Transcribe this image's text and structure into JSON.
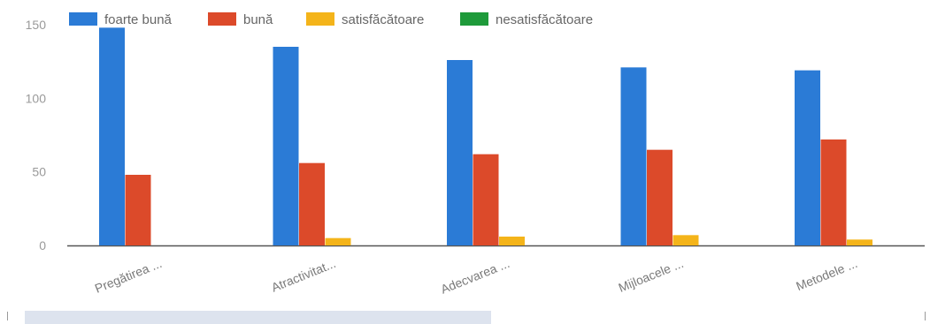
{
  "chart_data": {
    "type": "bar",
    "categories": [
      "Pregătirea ...",
      "Atractivitat...",
      "Adecvarea ...",
      "Mijloacele ...",
      "Metodele ..."
    ],
    "series": [
      {
        "name": "foarte bună",
        "color": "#2b7bd6",
        "values": [
          148,
          135,
          126,
          121,
          119
        ]
      },
      {
        "name": "bună",
        "color": "#dc4a2a",
        "values": [
          48,
          56,
          62,
          65,
          72
        ]
      },
      {
        "name": "satisfăcătoare",
        "color": "#f4b41a",
        "values": [
          0,
          5,
          6,
          7,
          4
        ]
      },
      {
        "name": "nesatisfăcătoare",
        "color": "#1e9a3a",
        "values": [
          0,
          0,
          0,
          0,
          0
        ]
      }
    ],
    "yticks": [
      0,
      50,
      100,
      150
    ],
    "ylim": [
      0,
      150
    ],
    "grid": false,
    "legend_position": "top-left",
    "title": "",
    "xlabel": "",
    "ylabel": ""
  }
}
